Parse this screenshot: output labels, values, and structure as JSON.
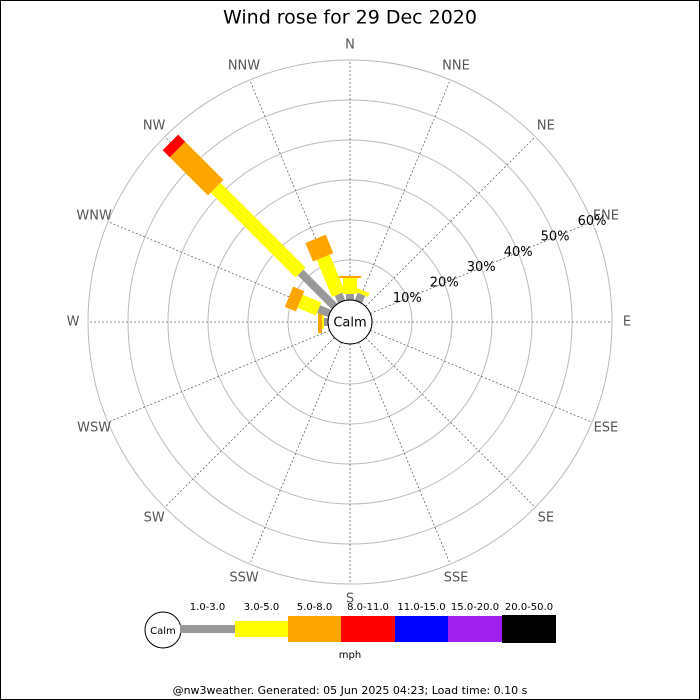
{
  "chart_data": {
    "type": "windrose",
    "title": "Wind rose for 29 Dec 2020",
    "calm_label": "Calm",
    "directions": [
      "N",
      "NNE",
      "NE",
      "ENE",
      "E",
      "ESE",
      "SE",
      "SSE",
      "S",
      "SSW",
      "SW",
      "WSW",
      "W",
      "WNW",
      "NW",
      "NNW"
    ],
    "rlim": [
      0,
      60
    ],
    "rticks": [
      {
        "value": 10,
        "label": "10%"
      },
      {
        "value": 20,
        "label": "20%"
      },
      {
        "value": 30,
        "label": "30%"
      },
      {
        "value": 40,
        "label": "40%"
      },
      {
        "value": 50,
        "label": "50%"
      },
      {
        "value": 60,
        "label": "60%"
      }
    ],
    "series": [
      {
        "name": "1.0-3.0",
        "color": "#999999",
        "values": [
          1.5,
          2,
          0,
          0,
          0,
          0,
          0,
          0,
          0,
          0,
          0,
          0,
          1,
          3,
          12,
          2
        ]
      },
      {
        "name": "3.0-5.0",
        "color": "#ffff00",
        "values": [
          4,
          1,
          0,
          0,
          0,
          0,
          0,
          0,
          0,
          0,
          0,
          0,
          0.5,
          5,
          30,
          10
        ]
      },
      {
        "name": "5.0-8.0",
        "color": "#ffa500",
        "values": [
          0.5,
          0,
          0,
          0,
          0,
          0,
          0,
          0,
          0,
          0,
          0,
          0,
          1,
          3,
          13.5,
          5
        ]
      },
      {
        "name": "8.0-11.0",
        "color": "#ff0000",
        "values": [
          0,
          0,
          0,
          0,
          0,
          0,
          0,
          0,
          0,
          0,
          0,
          0,
          0,
          0,
          2.5,
          0
        ]
      },
      {
        "name": "11.0-15.0",
        "color": "#0000ff",
        "values": [
          0,
          0,
          0,
          0,
          0,
          0,
          0,
          0,
          0,
          0,
          0,
          0,
          0,
          0,
          0,
          0
        ]
      },
      {
        "name": "15.0-20.0",
        "color": "#a020f0",
        "values": [
          0,
          0,
          0,
          0,
          0,
          0,
          0,
          0,
          0,
          0,
          0,
          0,
          0,
          0,
          0,
          0
        ]
      },
      {
        "name": "20.0-50.0",
        "color": "#000000",
        "values": [
          0,
          0,
          0,
          0,
          0,
          0,
          0,
          0,
          0,
          0,
          0,
          0,
          0,
          0,
          0,
          0
        ]
      }
    ],
    "legend_unit": "mph",
    "footer": "@nw3weather. Generated: 05 Jun 2025 04:23; Load time: 0.10 s"
  }
}
